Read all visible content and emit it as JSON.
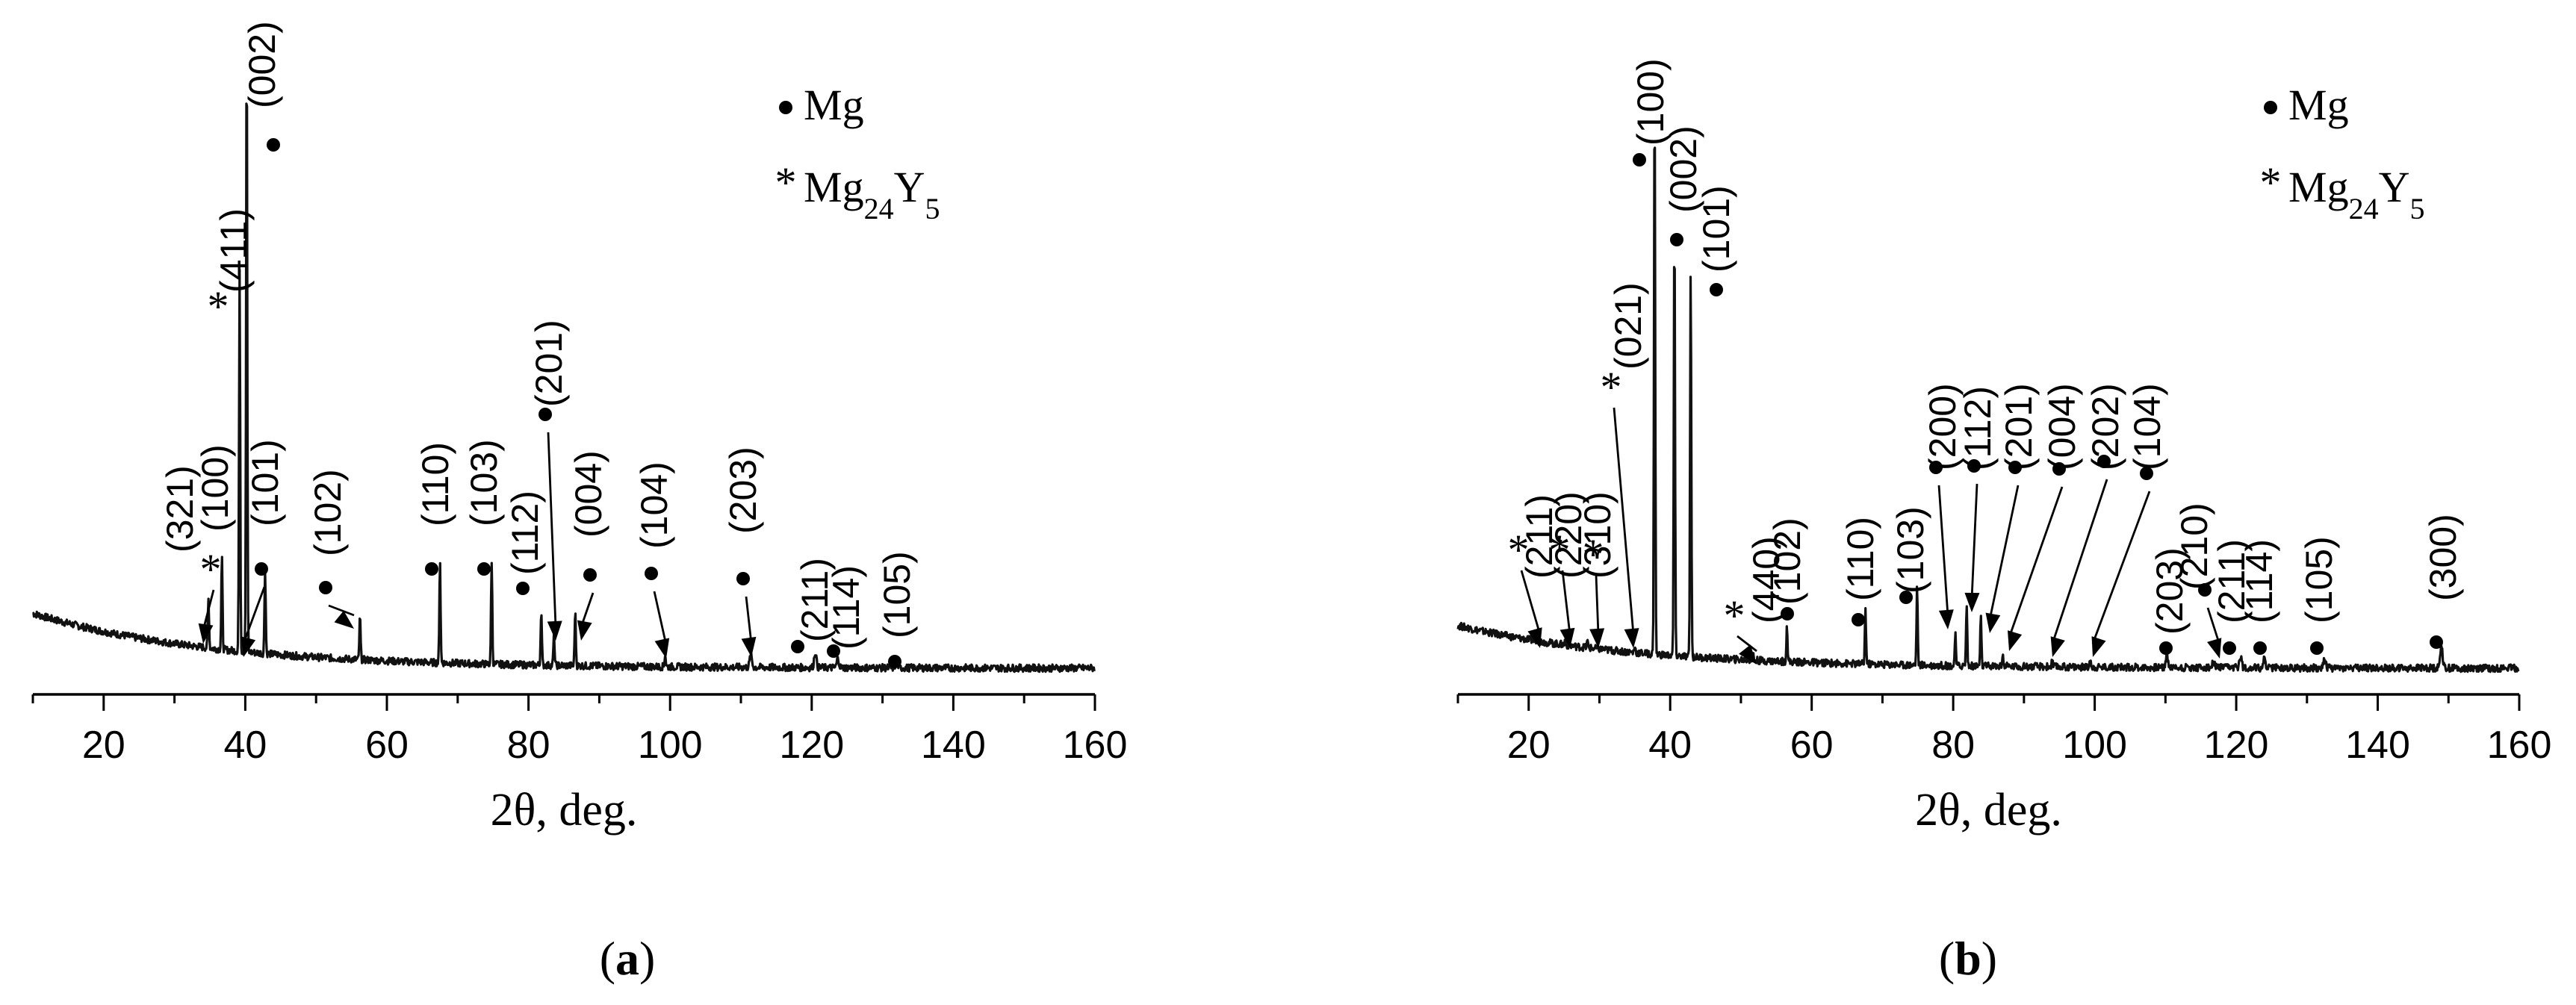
{
  "chart_data": [
    {
      "type": "line",
      "panel_label": "a",
      "xlabel": "2θ, deg.",
      "ylabel": "",
      "xlim": [
        10,
        160
      ],
      "xticks": [
        20,
        40,
        60,
        80,
        100,
        120,
        140,
        160
      ],
      "y_ticks_shown": false,
      "legend": [
        {
          "marker": "•",
          "name": "Mg",
          "phase": "Mg"
        },
        {
          "marker": "*",
          "name": "Mg24Y5",
          "phase": "Mg24Y5"
        }
      ],
      "legend_position": "top-right",
      "background_start": 0.09,
      "background_end": 0.0,
      "peaks": [
        {
          "x": 34.8,
          "height": 0.08,
          "label": "(321)",
          "phase": "Mg24Y5",
          "marker": "*",
          "arrow": true
        },
        {
          "x": 36.7,
          "height": 0.15,
          "label": "(100)",
          "phase": "Mg",
          "marker": "•",
          "arrow": false
        },
        {
          "x": 39.2,
          "height": 0.62,
          "label": "(411)",
          "phase": "Mg24Y5",
          "marker": "*",
          "arrow": false
        },
        {
          "x": 40.2,
          "height": 1.0,
          "label": "(002)",
          "phase": "Mg",
          "marker": "•",
          "arrow": false
        },
        {
          "x": 42.8,
          "height": 0.14,
          "label": "(101)",
          "phase": "Mg",
          "marker": "•",
          "arrow": true
        },
        {
          "x": 56.2,
          "height": 0.07,
          "label": "(102)",
          "phase": "Mg",
          "marker": "•",
          "arrow": true
        },
        {
          "x": 67.5,
          "height": 0.17,
          "label": "(110)",
          "phase": "Mg",
          "marker": "•",
          "arrow": false
        },
        {
          "x": 74.8,
          "height": 0.17,
          "label": "(103)",
          "phase": "Mg",
          "marker": "•",
          "arrow": false
        },
        {
          "x": 81.8,
          "height": 0.09,
          "label": "(112)",
          "phase": "Mg",
          "marker": "•",
          "arrow": false
        },
        {
          "x": 83.6,
          "height": 0.05,
          "label": "(201)",
          "phase": "Mg",
          "marker": "•",
          "arrow": true
        },
        {
          "x": 86.6,
          "height": 0.09,
          "label": "(004)",
          "phase": "Mg",
          "marker": "•",
          "arrow": true
        },
        {
          "x": 99.3,
          "height": 0.02,
          "label": "(104)",
          "phase": "Mg",
          "marker": "•",
          "arrow": true
        },
        {
          "x": 111.4,
          "height": 0.02,
          "label": "(203)",
          "phase": "Mg",
          "marker": "•",
          "arrow": true
        },
        {
          "x": 120.5,
          "height": 0.025,
          "label": "(211)",
          "phase": "Mg",
          "marker": "•",
          "arrow": false
        },
        {
          "x": 123.7,
          "height": 0.015,
          "label": "(114)",
          "phase": "Mg",
          "marker": "•",
          "arrow": false
        },
        {
          "x": 132.0,
          "height": 0.012,
          "label": "(105)",
          "phase": "Mg",
          "marker": "•",
          "arrow": false
        }
      ]
    },
    {
      "type": "line",
      "panel_label": "b",
      "xlabel": "2θ, deg.",
      "ylabel": "",
      "xlim": [
        10,
        160
      ],
      "xticks": [
        20,
        40,
        60,
        80,
        100,
        120,
        140,
        160
      ],
      "y_ticks_shown": false,
      "legend": [
        {
          "marker": "•",
          "name": "Mg",
          "phase": "Mg"
        },
        {
          "marker": "*",
          "name": "Mg24Y5",
          "phase": "Mg24Y5"
        }
      ],
      "legend_position": "top-right",
      "background_start": 0.07,
      "background_end": 0.0,
      "peaks": [
        {
          "x": 21.2,
          "height": 0.01,
          "label": "(211)",
          "phase": "Mg24Y5",
          "marker": "*",
          "arrow": true
        },
        {
          "x": 25.2,
          "height": 0.01,
          "label": "(220)",
          "phase": "Mg24Y5",
          "marker": "*",
          "arrow": true
        },
        {
          "x": 28.3,
          "height": 0.01,
          "label": "(310)",
          "phase": "Mg24Y5",
          "marker": "*",
          "arrow": true
        },
        {
          "x": 35.0,
          "height": 0.01,
          "label": "(021)",
          "phase": "Mg24Y5",
          "marker": "*",
          "arrow": true
        },
        {
          "x": 37.8,
          "height": 0.93,
          "label": "(100)",
          "phase": "Mg",
          "marker": "•",
          "arrow": false
        },
        {
          "x": 40.6,
          "height": 0.71,
          "label": "(002)",
          "phase": "Mg",
          "marker": "•",
          "arrow": false
        },
        {
          "x": 42.9,
          "height": 0.64,
          "label": "(101)",
          "phase": "Mg",
          "marker": "•",
          "arrow": false
        },
        {
          "x": 51.7,
          "height": 0.01,
          "label": "(440)",
          "phase": "Mg24Y5",
          "marker": "*",
          "arrow": true
        },
        {
          "x": 56.5,
          "height": 0.06,
          "label": "(102)",
          "phase": "Mg",
          "marker": "•",
          "arrow": false
        },
        {
          "x": 67.6,
          "height": 0.09,
          "label": "(110)",
          "phase": "Mg",
          "marker": "•",
          "arrow": false
        },
        {
          "x": 74.9,
          "height": 0.13,
          "label": "(103)",
          "phase": "Mg",
          "marker": "•",
          "arrow": false
        },
        {
          "x": 80.3,
          "height": 0.05,
          "label": "(200)",
          "phase": "Mg",
          "marker": "•",
          "arrow": true
        },
        {
          "x": 81.9,
          "height": 0.1,
          "label": "(112)",
          "phase": "Mg",
          "marker": "•",
          "arrow": true
        },
        {
          "x": 83.9,
          "height": 0.08,
          "label": "(201)",
          "phase": "Mg",
          "marker": "•",
          "arrow": true
        },
        {
          "x": 87.0,
          "height": 0.02,
          "label": "(004)",
          "phase": "Mg",
          "marker": "•",
          "arrow": true
        },
        {
          "x": 94.0,
          "height": 0.01,
          "label": "(202)",
          "phase": "Mg",
          "marker": "•",
          "arrow": true
        },
        {
          "x": 99.4,
          "height": 0.01,
          "label": "(104)",
          "phase": "Mg",
          "marker": "•",
          "arrow": true
        },
        {
          "x": 110.2,
          "height": 0.02,
          "label": "(203)",
          "phase": "Mg",
          "marker": "•",
          "arrow": false
        },
        {
          "x": 116.8,
          "height": 0.01,
          "label": "(210)",
          "phase": "Mg",
          "marker": "•",
          "arrow": true
        },
        {
          "x": 120.6,
          "height": 0.02,
          "label": "(211)",
          "phase": "Mg",
          "marker": "•",
          "arrow": false
        },
        {
          "x": 124.0,
          "height": 0.015,
          "label": "(114)",
          "phase": "Mg",
          "marker": "•",
          "arrow": false
        },
        {
          "x": 132.5,
          "height": 0.015,
          "label": "(105)",
          "phase": "Mg",
          "marker": "•",
          "arrow": false
        },
        {
          "x": 149.0,
          "height": 0.04,
          "label": "(300)",
          "phase": "Mg",
          "marker": "•",
          "arrow": false
        }
      ]
    }
  ]
}
